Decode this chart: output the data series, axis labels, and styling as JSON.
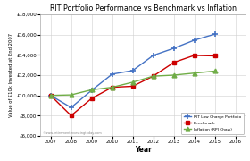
{
  "title": "RIT Portfolio Performance vs Benchmark vs Inflation",
  "xlabel": "Year",
  "ylabel": "Value of £10k Invested at End 2007",
  "years": [
    2007,
    2008,
    2009,
    2010,
    2011,
    2012,
    2013,
    2014,
    2015
  ],
  "portfolio": [
    10000,
    8800,
    10500,
    12100,
    12450,
    13950,
    14650,
    15450,
    16050
  ],
  "benchmark": [
    10000,
    8000,
    9700,
    10800,
    10900,
    11900,
    13250,
    13950,
    13900
  ],
  "inflation": [
    10000,
    10050,
    10550,
    10800,
    11300,
    11900,
    12000,
    12200,
    12400
  ],
  "portfolio_color": "#4472C4",
  "benchmark_color": "#CC0000",
  "inflation_color": "#70AD47",
  "ylim": [
    6000,
    18000
  ],
  "yticks": [
    6000,
    8000,
    10000,
    12000,
    14000,
    16000,
    18000
  ],
  "xlim": [
    2006.5,
    2016.5
  ],
  "xticks": [
    2007,
    2008,
    2009,
    2010,
    2011,
    2012,
    2013,
    2014,
    2015,
    2016
  ],
  "legend_labels": [
    "RIT Low Charge Portfolio",
    "Benchmark",
    "Inflation (RPI Chaw)"
  ],
  "watermark": "©www.retirementinvestingtoday.com",
  "background_color": "#FFFFFF",
  "grid_color": "#D0D0D0"
}
